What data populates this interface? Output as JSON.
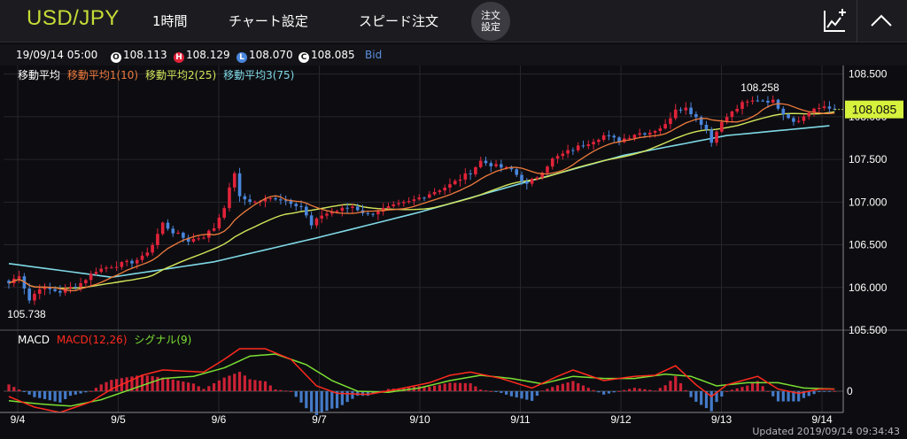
{
  "header": {
    "symbol": "USD/JPY",
    "timeframe": "1時間",
    "chart_settings": "チャート設定",
    "speed_order": "スピード注文",
    "order_settings_line1": "注文",
    "order_settings_line2": "設定",
    "chart_tools_icon": "chart-pen-icon",
    "collapse_icon": "chevron-up-icon"
  },
  "ohlc": {
    "datetime": "19/09/14 05:00",
    "open_badge": "O",
    "open": "108.113",
    "high_badge": "H",
    "high": "108.129",
    "low_badge": "L",
    "low": "108.070",
    "close_badge": "C",
    "close": "108.085",
    "price_type": "Bid"
  },
  "colors": {
    "up": "#e2233a",
    "down": "#4a86dc",
    "ma1": "#ee7a3c",
    "ma2": "#d4e65a",
    "ma3": "#7fd9e6",
    "macd": "#ff2a1e",
    "signal": "#7be033",
    "current_price_bg": "#d6f23c"
  },
  "legend": {
    "ma_title": "移動平均",
    "ma1": "移動平均1(10)",
    "ma2": "移動平均2(25)",
    "ma3": "移動平均3(75)",
    "macd_title": "MACD",
    "macd": "MACD(12,26)",
    "signal": "シグナル(9)"
  },
  "chart_data": {
    "type": "candlestick",
    "instrument": "USD/JPY",
    "interval": "1時間",
    "x_ticks": [
      "9/4",
      "9/5",
      "9/6",
      "9/7",
      "9/10",
      "9/11",
      "9/12",
      "9/13",
      "9/14"
    ],
    "y_ticks": [
      "108.500",
      "108.000",
      "107.500",
      "107.000",
      "106.500",
      "106.000",
      "105.500"
    ],
    "ylim": [
      105.5,
      108.6
    ],
    "current_price": "108.085",
    "max_label": "108.258",
    "min_label": "105.738",
    "close_path": [
      [
        0,
        106.05
      ],
      [
        2,
        106.15
      ],
      [
        4,
        105.85
      ],
      [
        6,
        106.0
      ],
      [
        10,
        105.95
      ],
      [
        14,
        106.05
      ],
      [
        17,
        106.2
      ],
      [
        20,
        106.25
      ],
      [
        24,
        106.3
      ],
      [
        26,
        106.35
      ],
      [
        28,
        106.5
      ],
      [
        30,
        106.75
      ],
      [
        32,
        106.65
      ],
      [
        35,
        106.55
      ],
      [
        38,
        106.6
      ],
      [
        40,
        106.7
      ],
      [
        42,
        106.95
      ],
      [
        44,
        107.35
      ],
      [
        45,
        107.05
      ],
      [
        48,
        107.0
      ],
      [
        52,
        107.05
      ],
      [
        55,
        107.0
      ],
      [
        57,
        106.95
      ],
      [
        59,
        106.72
      ],
      [
        61,
        106.85
      ],
      [
        64,
        106.9
      ],
      [
        67,
        106.95
      ],
      [
        70,
        106.85
      ],
      [
        72,
        106.9
      ],
      [
        75,
        106.95
      ],
      [
        78,
        107.0
      ],
      [
        82,
        107.1
      ],
      [
        86,
        107.2
      ],
      [
        90,
        107.35
      ],
      [
        92,
        107.48
      ],
      [
        95,
        107.42
      ],
      [
        98,
        107.38
      ],
      [
        101,
        107.2
      ],
      [
        103,
        107.3
      ],
      [
        106,
        107.5
      ],
      [
        110,
        107.62
      ],
      [
        113,
        107.7
      ],
      [
        116,
        107.78
      ],
      [
        119,
        107.72
      ],
      [
        122,
        107.8
      ],
      [
        125,
        107.82
      ],
      [
        128,
        107.9
      ],
      [
        130,
        108.1
      ],
      [
        132,
        108.1
      ],
      [
        134,
        108.0
      ],
      [
        136,
        107.85
      ],
      [
        137,
        107.7
      ],
      [
        138,
        107.85
      ],
      [
        140,
        108.0
      ],
      [
        143,
        108.15
      ],
      [
        146,
        108.2
      ],
      [
        149,
        108.18
      ],
      [
        151,
        108.05
      ],
      [
        153,
        107.95
      ],
      [
        155,
        108.0
      ],
      [
        157,
        108.1
      ],
      [
        159,
        108.1
      ],
      [
        161,
        108.085
      ]
    ],
    "ma3_path": [
      [
        0,
        106.28
      ],
      [
        20,
        106.12
      ],
      [
        40,
        106.3
      ],
      [
        60,
        106.58
      ],
      [
        80,
        106.88
      ],
      [
        100,
        107.22
      ],
      [
        120,
        107.55
      ],
      [
        140,
        107.78
      ],
      [
        161,
        107.9
      ]
    ],
    "macd_zero_label": "0",
    "macd_path": [
      [
        0,
        -0.05
      ],
      [
        5,
        -0.15
      ],
      [
        10,
        -0.2
      ],
      [
        16,
        -0.1
      ],
      [
        20,
        0.02
      ],
      [
        26,
        0.15
      ],
      [
        30,
        0.2
      ],
      [
        38,
        0.18
      ],
      [
        42,
        0.3
      ],
      [
        45,
        0.4
      ],
      [
        50,
        0.4
      ],
      [
        55,
        0.3
      ],
      [
        60,
        0.05
      ],
      [
        64,
        -0.02
      ],
      [
        70,
        -0.03
      ],
      [
        76,
        0.02
      ],
      [
        82,
        0.08
      ],
      [
        86,
        0.15
      ],
      [
        90,
        0.18
      ],
      [
        96,
        0.12
      ],
      [
        102,
        0.03
      ],
      [
        107,
        0.14
      ],
      [
        110,
        0.2
      ],
      [
        116,
        0.1
      ],
      [
        122,
        0.14
      ],
      [
        126,
        0.15
      ],
      [
        130,
        0.24
      ],
      [
        134,
        0.06
      ],
      [
        137,
        -0.05
      ],
      [
        140,
        0.06
      ],
      [
        146,
        0.14
      ],
      [
        150,
        0.02
      ],
      [
        154,
        -0.02
      ],
      [
        158,
        0.02
      ],
      [
        161,
        0.02
      ]
    ],
    "signal_path": [
      [
        0,
        -0.09
      ],
      [
        6,
        -0.12
      ],
      [
        12,
        -0.14
      ],
      [
        18,
        -0.08
      ],
      [
        24,
        0.02
      ],
      [
        30,
        0.12
      ],
      [
        36,
        0.14
      ],
      [
        42,
        0.22
      ],
      [
        47,
        0.33
      ],
      [
        52,
        0.35
      ],
      [
        58,
        0.25
      ],
      [
        63,
        0.1
      ],
      [
        68,
        0.0
      ],
      [
        74,
        -0.01
      ],
      [
        80,
        0.03
      ],
      [
        86,
        0.1
      ],
      [
        92,
        0.15
      ],
      [
        98,
        0.12
      ],
      [
        104,
        0.07
      ],
      [
        110,
        0.14
      ],
      [
        116,
        0.12
      ],
      [
        122,
        0.12
      ],
      [
        128,
        0.16
      ],
      [
        133,
        0.14
      ],
      [
        138,
        0.05
      ],
      [
        144,
        0.08
      ],
      [
        150,
        0.08
      ],
      [
        155,
        0.03
      ],
      [
        161,
        0.02
      ]
    ]
  },
  "footer": {
    "updated": "Updated  2019/09/14 09:34:43"
  }
}
